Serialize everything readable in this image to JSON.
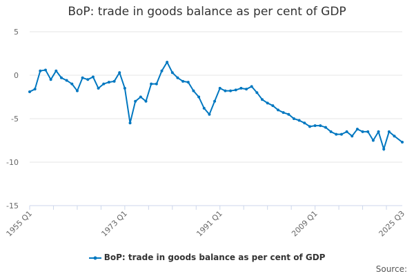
{
  "chart_data": {
    "type": "line",
    "title": "BoP: trade in goods balance as per cent of GDP",
    "xlabel": "",
    "ylabel": "",
    "ylim": [
      -15,
      5
    ],
    "yticks": [
      5,
      0,
      -5,
      -10,
      -15
    ],
    "xtick_labels": [
      "1955 Q1",
      "1973 Q1",
      "1991 Q1",
      "2009 Q1",
      "2025 Q3"
    ],
    "grid": true,
    "legend_position": "bottom",
    "color": "#0077c0",
    "series": [
      {
        "name": "BoP: trade in goods balance as per cent of GDP",
        "x": [
          1955,
          1956,
          1957,
          1958,
          1959,
          1960,
          1961,
          1962,
          1963,
          1964,
          1965,
          1966,
          1967,
          1968,
          1969,
          1970,
          1971,
          1972,
          1973,
          1974,
          1975,
          1976,
          1977,
          1978,
          1979,
          1980,
          1981,
          1982,
          1983,
          1984,
          1985,
          1986,
          1987,
          1988,
          1989,
          1990,
          1991,
          1992,
          1993,
          1994,
          1995,
          1996,
          1997,
          1998,
          1999,
          2000,
          2001,
          2002,
          2003,
          2004,
          2005,
          2006,
          2007,
          2008,
          2009,
          2010,
          2011,
          2012,
          2013,
          2014,
          2015,
          2016,
          2017,
          2018,
          2019,
          2020,
          2021,
          2022,
          2023,
          2024,
          2025.5
        ],
        "values": [
          -1.9,
          -1.6,
          0.5,
          0.6,
          -0.5,
          0.5,
          -0.3,
          -0.6,
          -1.0,
          -1.8,
          -0.3,
          -0.5,
          -0.2,
          -1.5,
          -1.0,
          -0.8,
          -0.7,
          0.3,
          -1.5,
          -5.5,
          -3.0,
          -2.5,
          -3.0,
          -1.0,
          -1.0,
          0.5,
          1.5,
          0.3,
          -0.3,
          -0.7,
          -0.8,
          -1.8,
          -2.5,
          -3.8,
          -4.5,
          -3.0,
          -1.5,
          -1.8,
          -1.8,
          -1.7,
          -1.5,
          -1.6,
          -1.3,
          -2.0,
          -2.8,
          -3.2,
          -3.5,
          -4.0,
          -4.3,
          -4.5,
          -5.0,
          -5.2,
          -5.5,
          -5.9,
          -5.8,
          -5.8,
          -6.0,
          -6.5,
          -6.8,
          -6.8,
          -6.5,
          -7.0,
          -6.2,
          -6.5,
          -6.5,
          -7.5,
          -6.5,
          -8.5,
          -6.5,
          -7.0,
          -7.7
        ]
      }
    ]
  },
  "source_label": "Source:"
}
